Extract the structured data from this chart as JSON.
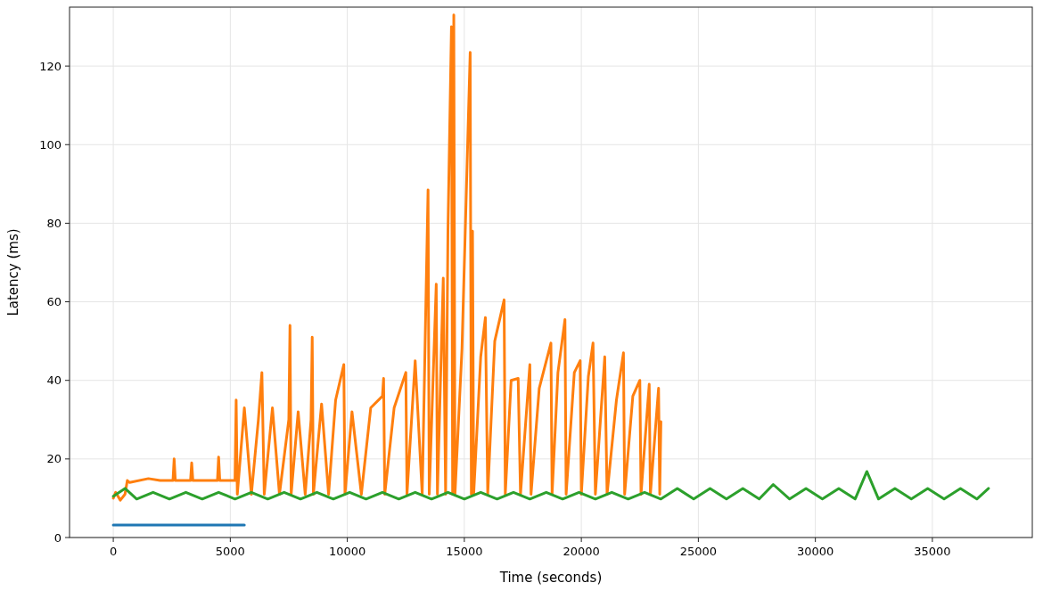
{
  "chart_data": {
    "type": "line",
    "xlabel": "Time (seconds)",
    "ylabel": "Latency (ms)",
    "xlim": [
      -1870,
      39270
    ],
    "ylim": [
      0,
      135
    ],
    "xticks": [
      0,
      5000,
      10000,
      15000,
      20000,
      25000,
      30000,
      35000
    ],
    "yticks": [
      0,
      20,
      40,
      60,
      80,
      100,
      120
    ],
    "grid": true,
    "marker": "none",
    "line_style": "solid",
    "series": [
      {
        "color": "#1f77b4",
        "x": [
          0,
          2800,
          5600
        ],
        "values": [
          3.2,
          3.2,
          3.2
        ]
      },
      {
        "color": "#ff7f0e",
        "x": [
          0,
          100,
          300,
          500,
          600,
          700,
          1500,
          2000,
          2550,
          2600,
          2650,
          3300,
          3350,
          3400,
          4450,
          4500,
          4550,
          5200,
          5250,
          5300,
          5600,
          5900,
          6200,
          6350,
          6450,
          6800,
          7100,
          7500,
          7550,
          7600,
          7900,
          8200,
          8450,
          8500,
          8550,
          8900,
          9200,
          9500,
          9850,
          9900,
          10200,
          10600,
          11000,
          11500,
          11550,
          11600,
          12000,
          12500,
          12550,
          12900,
          13200,
          13450,
          13500,
          13800,
          13850,
          14100,
          14200,
          14300,
          14450,
          14500,
          14550,
          14600,
          14900,
          15250,
          15300,
          15350,
          15400,
          15700,
          15900,
          16000,
          16300,
          16700,
          16750,
          17000,
          17300,
          17400,
          17800,
          17850,
          18200,
          18700,
          18750,
          19000,
          19300,
          19350,
          19700,
          19950,
          20000,
          20300,
          20500,
          20600,
          21000,
          21100,
          21500,
          21800,
          21850,
          22200,
          22500,
          22550,
          22900,
          22950,
          23300,
          23350,
          23400
        ],
        "values": [
          10,
          11.5,
          9.5,
          11,
          14.5,
          14,
          15,
          14.5,
          14.5,
          20,
          14.5,
          14.5,
          19,
          14.5,
          14.5,
          20.5,
          14.5,
          14.5,
          35,
          11,
          33,
          11,
          30,
          42,
          11,
          33,
          11,
          30,
          54,
          11,
          32,
          11,
          30,
          51,
          11,
          34,
          11,
          35,
          44,
          11,
          32,
          11,
          33,
          36,
          40.5,
          11,
          33,
          42,
          11,
          45,
          11,
          88.5,
          11,
          64.5,
          11,
          66,
          11,
          78,
          130,
          11,
          133,
          11,
          48,
          123.5,
          11,
          78,
          11,
          46,
          56,
          11,
          50,
          60.5,
          11,
          40,
          40.5,
          11,
          44,
          11,
          38,
          49.5,
          11,
          42,
          55.5,
          11,
          42,
          45,
          11,
          41,
          49.5,
          11,
          46,
          11,
          35,
          47,
          11,
          36,
          40,
          11,
          39,
          11,
          38,
          11,
          29.5
        ]
      },
      {
        "color": "#2ca02c",
        "x": [
          0,
          500,
          1000,
          1700,
          2400,
          3100,
          3800,
          4500,
          5200,
          5900,
          6600,
          7300,
          8000,
          8700,
          9400,
          10100,
          10800,
          11500,
          12200,
          12900,
          13600,
          14300,
          15000,
          15700,
          16400,
          17100,
          17800,
          18500,
          19200,
          19900,
          20600,
          21300,
          22000,
          22700,
          23400,
          24100,
          24800,
          25500,
          26200,
          26900,
          27600,
          28200,
          28900,
          29600,
          30300,
          31000,
          31700,
          32200,
          32700,
          33400,
          34100,
          34800,
          35500,
          36200,
          36900,
          37400
        ],
        "values": [
          10.5,
          12.5,
          9.8,
          11.5,
          9.8,
          11.5,
          9.8,
          11.5,
          9.8,
          11.5,
          9.8,
          11.5,
          9.8,
          11.5,
          9.8,
          11.5,
          9.8,
          11.5,
          9.8,
          11.5,
          9.8,
          11.5,
          9.8,
          11.5,
          9.8,
          11.5,
          9.8,
          11.5,
          9.8,
          11.5,
          9.8,
          11.5,
          9.8,
          11.5,
          9.8,
          12.5,
          9.8,
          12.5,
          9.8,
          12.5,
          9.8,
          13.5,
          9.8,
          12.5,
          9.8,
          12.5,
          9.8,
          16.8,
          9.8,
          12.5,
          9.8,
          12.5,
          9.8,
          12.5,
          9.8,
          12.5
        ]
      }
    ]
  }
}
